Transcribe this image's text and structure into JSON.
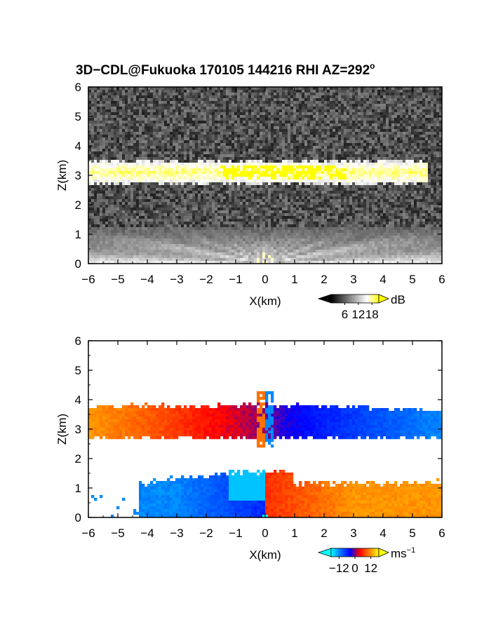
{
  "figure": {
    "title": "3D−CDL@Fukuoka 170105 144216 RHI AZ=292",
    "title_degree": "o"
  },
  "chart_data": [
    {
      "type": "heatmap",
      "name": "reflectivity",
      "xlabel": "X(km)",
      "ylabel": "Z(km)",
      "xlim": [
        -6,
        6
      ],
      "ylim": [
        0,
        6
      ],
      "xticks": [
        -6,
        -5,
        -4,
        -3,
        -2,
        -1,
        0,
        1,
        2,
        3,
        4,
        5,
        6
      ],
      "yticks": [
        0,
        1,
        2,
        3,
        4,
        5,
        6
      ],
      "colormap": {
        "colors": [
          "#000000",
          "#555555",
          "#aaaaaa",
          "#ffffff",
          "#ffff00"
        ],
        "ticks": [
          6,
          12,
          18
        ],
        "range": [
          0,
          21
        ],
        "unit": "dB"
      },
      "layers": [
        {
          "x_range": [
            -5.6,
            4.6
          ],
          "z_center": 3.1,
          "thickness": 0.55,
          "value": 13,
          "saturated_x": [
            -1.5,
            2.8
          ]
        },
        {
          "x_range": [
            -6.0,
            6.0
          ],
          "z_center": 0.6,
          "thickness": 1.0,
          "value": 10,
          "source_x": 0.0
        }
      ],
      "grid": false,
      "legend_position": "bottom-right"
    },
    {
      "type": "heatmap",
      "name": "doppler_velocity",
      "xlabel": "X(km)",
      "ylabel": "Z(km)",
      "xlim": [
        -6,
        6
      ],
      "ylim": [
        0,
        6
      ],
      "xticks": [
        -6,
        -5,
        -4,
        -3,
        -2,
        -1,
        0,
        1,
        2,
        3,
        4,
        5,
        6
      ],
      "yticks": [
        0,
        1,
        2,
        3,
        4,
        5,
        6
      ],
      "colormap": {
        "colors": [
          "#00ffff",
          "#0070ff",
          "#0000ff",
          "#ff0000",
          "#ff8000",
          "#ffff00"
        ],
        "ticks": [
          -12,
          0,
          12
        ],
        "range": [
          -18,
          18
        ],
        "unit": "ms",
        "unit_exponent": "−1"
      },
      "layers": [
        {
          "x_range": [
            -6.0,
            6.0
          ],
          "z_range": [
            2.7,
            3.8
          ],
          "velocity_left": 12,
          "velocity_right": -12
        },
        {
          "x_range": [
            -4.3,
            6.0
          ],
          "z_range": [
            0.0,
            1.6
          ],
          "velocity_left": -12,
          "velocity_right": 12
        }
      ],
      "grid": false,
      "legend_position": "bottom-right"
    }
  ]
}
